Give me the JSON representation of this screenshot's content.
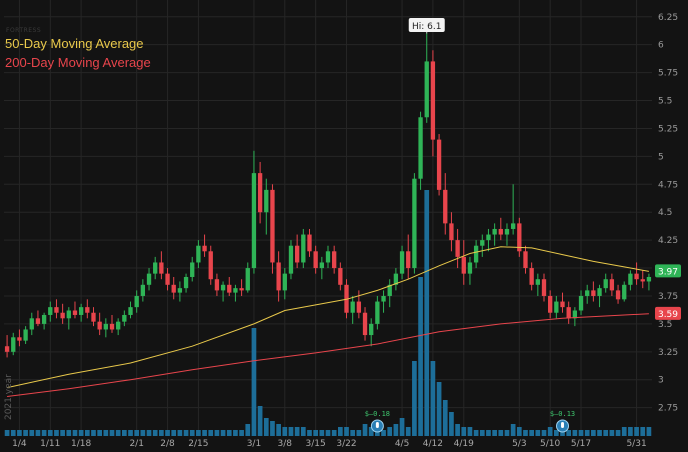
{
  "watermark": "FORTRESS",
  "year_label": "2021 year",
  "legend": {
    "ma50": {
      "label": "50-Day Moving Average",
      "color": "#e9c94b"
    },
    "ma200": {
      "label": "200-Day Moving Average",
      "color": "#e8454c"
    }
  },
  "colors": {
    "up": "#2fb457",
    "down": "#e8454c",
    "volume": "#1d6e99",
    "grid": "#262626",
    "background": "#131313"
  },
  "chart_data": {
    "type": "candlestick",
    "ylim": [
      2.55,
      6.4
    ],
    "y_ticks": [
      "2.75",
      "3",
      "3.25",
      "3.5",
      "3.75",
      "4",
      "4.25",
      "4.5",
      "4.75",
      "5",
      "5.25",
      "5.5",
      "5.75",
      "6",
      "6.25"
    ],
    "x_ticks": [
      {
        "label": "1/4",
        "day": 2
      },
      {
        "label": "1/11",
        "day": 7
      },
      {
        "label": "1/18",
        "day": 12
      },
      {
        "label": "2/1",
        "day": 21
      },
      {
        "label": "2/8",
        "day": 26
      },
      {
        "label": "2/15",
        "day": 31
      },
      {
        "label": "3/1",
        "day": 40
      },
      {
        "label": "3/8",
        "day": 45
      },
      {
        "label": "3/15",
        "day": 50
      },
      {
        "label": "3/22",
        "day": 55
      },
      {
        "label": "4/5",
        "day": 64
      },
      {
        "label": "4/12",
        "day": 69
      },
      {
        "label": "4/19",
        "day": 74
      },
      {
        "label": "5/3",
        "day": 83
      },
      {
        "label": "5/10",
        "day": 88
      },
      {
        "label": "5/17",
        "day": 93
      },
      {
        "label": "5/31",
        "day": 102
      }
    ],
    "hi_label": "Hi: 6.1",
    "hi_day": 68,
    "last_values": {
      "ma50": "3.97",
      "ma200": "3.59"
    },
    "dividend_markers": [
      {
        "label": "$–0.18",
        "day": 60
      },
      {
        "label": "$–0.13",
        "day": 90
      }
    ],
    "candles": [
      [
        3.3,
        3.4,
        3.2,
        3.25
      ],
      [
        3.25,
        3.42,
        3.22,
        3.38
      ],
      [
        3.38,
        3.45,
        3.3,
        3.35
      ],
      [
        3.35,
        3.48,
        3.32,
        3.45
      ],
      [
        3.45,
        3.6,
        3.4,
        3.55
      ],
      [
        3.55,
        3.62,
        3.48,
        3.5
      ],
      [
        3.5,
        3.6,
        3.45,
        3.58
      ],
      [
        3.58,
        3.7,
        3.52,
        3.65
      ],
      [
        3.65,
        3.72,
        3.55,
        3.6
      ],
      [
        3.6,
        3.68,
        3.5,
        3.55
      ],
      [
        3.55,
        3.65,
        3.45,
        3.62
      ],
      [
        3.62,
        3.7,
        3.55,
        3.58
      ],
      [
        3.58,
        3.68,
        3.52,
        3.65
      ],
      [
        3.65,
        3.72,
        3.55,
        3.6
      ],
      [
        3.6,
        3.65,
        3.48,
        3.52
      ],
      [
        3.52,
        3.6,
        3.4,
        3.45
      ],
      [
        3.45,
        3.55,
        3.38,
        3.5
      ],
      [
        3.5,
        3.58,
        3.42,
        3.45
      ],
      [
        3.45,
        3.55,
        3.4,
        3.52
      ],
      [
        3.52,
        3.62,
        3.48,
        3.58
      ],
      [
        3.58,
        3.7,
        3.55,
        3.65
      ],
      [
        3.65,
        3.8,
        3.6,
        3.75
      ],
      [
        3.75,
        3.9,
        3.7,
        3.85
      ],
      [
        3.85,
        4.0,
        3.8,
        3.95
      ],
      [
        3.95,
        4.1,
        3.9,
        4.05
      ],
      [
        4.05,
        4.15,
        3.9,
        3.95
      ],
      [
        3.95,
        4.0,
        3.8,
        3.85
      ],
      [
        3.85,
        3.92,
        3.72,
        3.78
      ],
      [
        3.78,
        3.88,
        3.7,
        3.82
      ],
      [
        3.82,
        3.95,
        3.78,
        3.92
      ],
      [
        3.92,
        4.1,
        3.88,
        4.05
      ],
      [
        4.05,
        4.25,
        4.0,
        4.2
      ],
      [
        4.2,
        4.3,
        4.1,
        4.15
      ],
      [
        4.15,
        4.2,
        3.85,
        3.9
      ],
      [
        3.9,
        3.95,
        3.75,
        3.8
      ],
      [
        3.8,
        3.88,
        3.7,
        3.85
      ],
      [
        3.85,
        3.92,
        3.75,
        3.78
      ],
      [
        3.78,
        3.85,
        3.7,
        3.82
      ],
      [
        3.82,
        3.9,
        3.75,
        3.8
      ],
      [
        3.8,
        4.05,
        3.78,
        4.0
      ],
      [
        4.0,
        5.05,
        3.95,
        4.85
      ],
      [
        4.85,
        4.95,
        4.4,
        4.5
      ],
      [
        4.5,
        4.8,
        4.3,
        4.7
      ],
      [
        4.7,
        4.75,
        3.95,
        4.05
      ],
      [
        4.05,
        4.15,
        3.7,
        3.8
      ],
      [
        3.8,
        4.0,
        3.72,
        3.95
      ],
      [
        3.95,
        4.25,
        3.9,
        4.2
      ],
      [
        4.2,
        4.3,
        4.0,
        4.05
      ],
      [
        4.05,
        4.35,
        4.0,
        4.3
      ],
      [
        4.3,
        4.35,
        4.1,
        4.15
      ],
      [
        4.15,
        4.2,
        3.95,
        4.0
      ],
      [
        4.0,
        4.1,
        3.9,
        4.05
      ],
      [
        4.05,
        4.2,
        4.0,
        4.15
      ],
      [
        4.15,
        4.2,
        3.95,
        4.0
      ],
      [
        4.0,
        4.05,
        3.8,
        3.85
      ],
      [
        3.85,
        3.9,
        3.55,
        3.6
      ],
      [
        3.6,
        3.75,
        3.5,
        3.7
      ],
      [
        3.7,
        3.8,
        3.55,
        3.6
      ],
      [
        3.6,
        3.65,
        3.35,
        3.4
      ],
      [
        3.4,
        3.55,
        3.3,
        3.5
      ],
      [
        3.5,
        3.75,
        3.45,
        3.7
      ],
      [
        3.7,
        3.8,
        3.6,
        3.75
      ],
      [
        3.75,
        3.9,
        3.65,
        3.85
      ],
      [
        3.85,
        4.0,
        3.8,
        3.95
      ],
      [
        3.95,
        4.2,
        3.9,
        4.15
      ],
      [
        4.15,
        4.3,
        3.9,
        4.0
      ],
      [
        4.0,
        4.85,
        3.95,
        4.8
      ],
      [
        4.8,
        5.4,
        4.7,
        5.35
      ],
      [
        5.35,
        6.1,
        5.3,
        5.85
      ],
      [
        5.85,
        5.95,
        5.0,
        5.15
      ],
      [
        5.15,
        5.2,
        4.65,
        4.7
      ],
      [
        4.7,
        4.85,
        4.3,
        4.4
      ],
      [
        4.4,
        4.5,
        4.15,
        4.25
      ],
      [
        4.25,
        4.35,
        4.0,
        4.1
      ],
      [
        4.1,
        4.25,
        3.85,
        3.95
      ],
      [
        3.95,
        4.1,
        3.85,
        4.05
      ],
      [
        4.05,
        4.25,
        4.0,
        4.2
      ],
      [
        4.2,
        4.3,
        4.1,
        4.25
      ],
      [
        4.25,
        4.35,
        4.15,
        4.3
      ],
      [
        4.3,
        4.4,
        4.2,
        4.35
      ],
      [
        4.35,
        4.45,
        4.25,
        4.3
      ],
      [
        4.3,
        4.4,
        4.2,
        4.35
      ],
      [
        4.35,
        4.75,
        4.3,
        4.4
      ],
      [
        4.4,
        4.45,
        4.1,
        4.15
      ],
      [
        4.15,
        4.2,
        3.95,
        4.0
      ],
      [
        4.0,
        4.05,
        3.8,
        3.85
      ],
      [
        3.85,
        3.95,
        3.75,
        3.9
      ],
      [
        3.9,
        3.95,
        3.7,
        3.75
      ],
      [
        3.75,
        3.8,
        3.55,
        3.6
      ],
      [
        3.6,
        3.75,
        3.55,
        3.7
      ],
      [
        3.7,
        3.78,
        3.6,
        3.65
      ],
      [
        3.65,
        3.7,
        3.5,
        3.55
      ],
      [
        3.55,
        3.65,
        3.48,
        3.62
      ],
      [
        3.62,
        3.8,
        3.58,
        3.75
      ],
      [
        3.75,
        3.85,
        3.68,
        3.8
      ],
      [
        3.8,
        3.88,
        3.7,
        3.75
      ],
      [
        3.75,
        3.85,
        3.65,
        3.82
      ],
      [
        3.82,
        3.95,
        3.78,
        3.9
      ],
      [
        3.9,
        3.95,
        3.75,
        3.8
      ],
      [
        3.8,
        3.85,
        3.68,
        3.72
      ],
      [
        3.72,
        3.88,
        3.7,
        3.85
      ],
      [
        3.85,
        3.98,
        3.8,
        3.95
      ],
      [
        3.95,
        4.05,
        3.85,
        3.9
      ],
      [
        3.9,
        3.98,
        3.82,
        3.88
      ],
      [
        3.88,
        3.95,
        3.8,
        3.92
      ]
    ],
    "volume": [
      0.02,
      0.02,
      0.02,
      0.02,
      0.02,
      0.02,
      0.02,
      0.02,
      0.02,
      0.02,
      0.02,
      0.02,
      0.02,
      0.02,
      0.02,
      0.02,
      0.02,
      0.02,
      0.02,
      0.02,
      0.02,
      0.02,
      0.02,
      0.02,
      0.02,
      0.02,
      0.02,
      0.02,
      0.02,
      0.02,
      0.02,
      0.02,
      0.02,
      0.02,
      0.02,
      0.02,
      0.02,
      0.02,
      0.02,
      0.04,
      0.36,
      0.1,
      0.06,
      0.05,
      0.04,
      0.03,
      0.03,
      0.03,
      0.03,
      0.02,
      0.02,
      0.02,
      0.02,
      0.02,
      0.03,
      0.03,
      0.02,
      0.02,
      0.04,
      0.03,
      0.03,
      0.02,
      0.03,
      0.04,
      0.06,
      0.03,
      0.25,
      0.53,
      0.82,
      0.25,
      0.18,
      0.12,
      0.08,
      0.04,
      0.03,
      0.03,
      0.02,
      0.02,
      0.02,
      0.02,
      0.02,
      0.02,
      0.04,
      0.03,
      0.02,
      0.02,
      0.02,
      0.02,
      0.03,
      0.02,
      0.02,
      0.02,
      0.02,
      0.02,
      0.02,
      0.02,
      0.02,
      0.02,
      0.02,
      0.02,
      0.03,
      0.03,
      0.03,
      0.03,
      0.03
    ],
    "ma50": [
      [
        0,
        2.93
      ],
      [
        10,
        3.05
      ],
      [
        20,
        3.15
      ],
      [
        30,
        3.3
      ],
      [
        40,
        3.5
      ],
      [
        45,
        3.62
      ],
      [
        50,
        3.67
      ],
      [
        55,
        3.72
      ],
      [
        60,
        3.8
      ],
      [
        65,
        3.9
      ],
      [
        70,
        4.02
      ],
      [
        75,
        4.13
      ],
      [
        80,
        4.19
      ],
      [
        85,
        4.18
      ],
      [
        90,
        4.12
      ],
      [
        95,
        4.06
      ],
      [
        100,
        4.01
      ],
      [
        104,
        3.97
      ]
    ],
    "ma200": [
      [
        0,
        2.85
      ],
      [
        10,
        2.92
      ],
      [
        20,
        3.0
      ],
      [
        30,
        3.09
      ],
      [
        40,
        3.17
      ],
      [
        50,
        3.24
      ],
      [
        60,
        3.32
      ],
      [
        70,
        3.43
      ],
      [
        80,
        3.5
      ],
      [
        90,
        3.55
      ],
      [
        100,
        3.58
      ],
      [
        104,
        3.59
      ]
    ]
  }
}
